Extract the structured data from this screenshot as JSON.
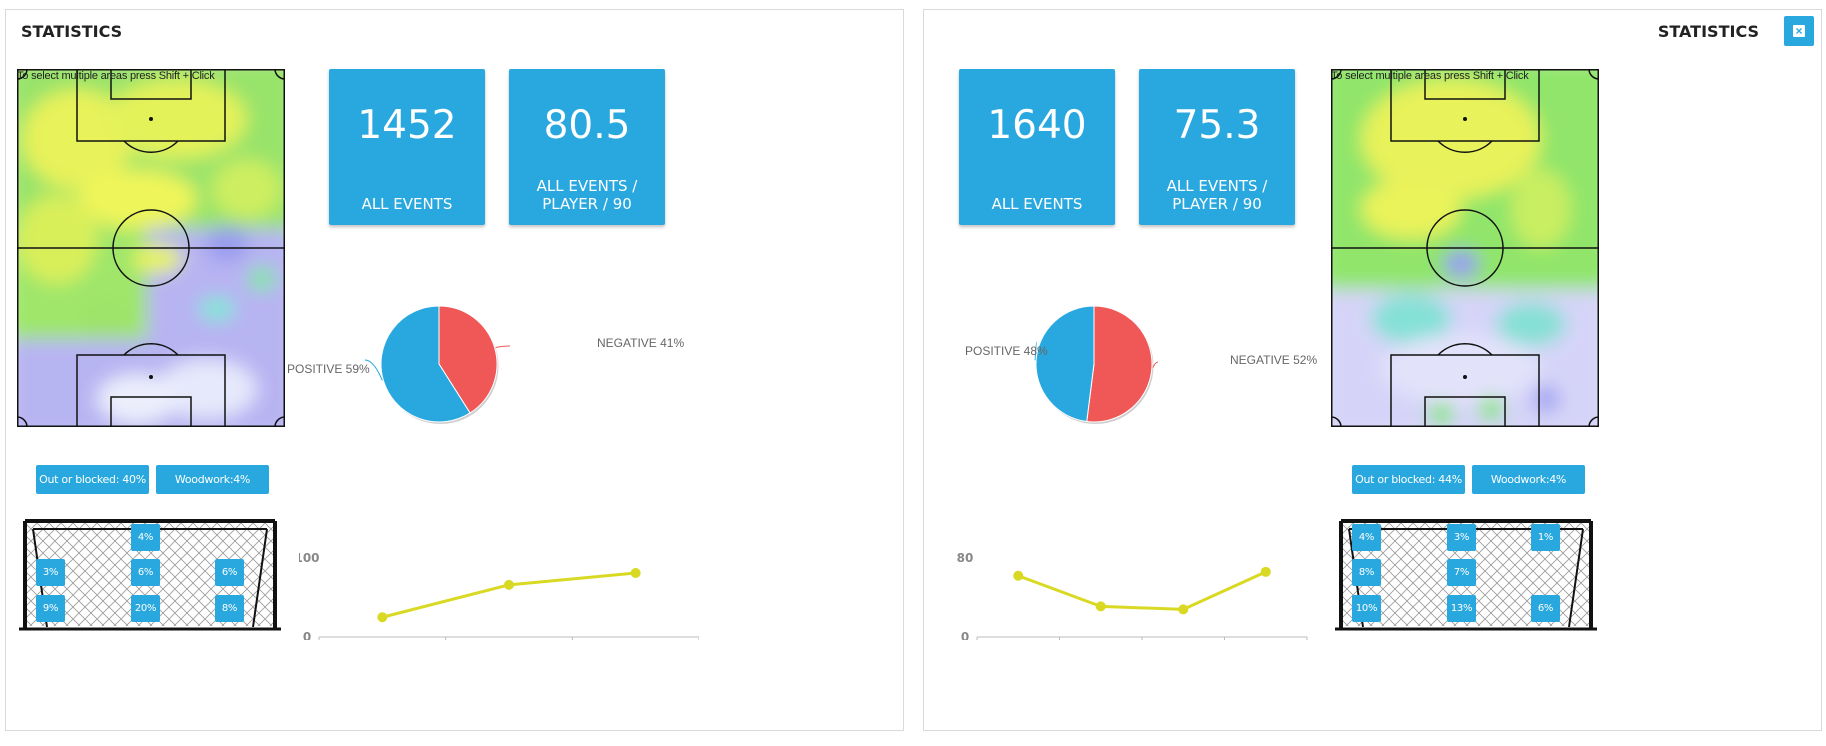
{
  "left": {
    "title": "STATISTICS",
    "pitch_hint": "To select multiple areas press Shift + Click",
    "all_events": {
      "value": "1452",
      "label": "ALL EVENTS"
    },
    "per90": {
      "value": "80.5",
      "label": "ALL EVENTS / PLAYER / 90"
    },
    "pie": {
      "positive_label": "POSITIVE 59%",
      "negative_label": "NEGATIVE 41%",
      "positive": 59,
      "negative": 41
    },
    "out_blocked": "Out or blocked: 40%",
    "woodwork": "Woodwork:4%",
    "goal_zones": [
      {
        "text": "4%",
        "row": 0,
        "col": 1
      },
      {
        "text": "3%",
        "row": 1,
        "col": 0
      },
      {
        "text": "6%",
        "row": 1,
        "col": 1
      },
      {
        "text": "6%",
        "row": 1,
        "col": 2
      },
      {
        "text": "9%",
        "row": 2,
        "col": 0
      },
      {
        "text": "20%",
        "row": 2,
        "col": 1
      },
      {
        "text": "8%",
        "row": 2,
        "col": 2
      }
    ]
  },
  "right": {
    "title": "STATISTICS",
    "close_icon": "close-icon",
    "close_glyph": "×",
    "pitch_hint": "To select multiple areas press Shift + Click",
    "all_events": {
      "value": "1640",
      "label": "ALL EVENTS"
    },
    "per90": {
      "value": "75.3",
      "label": "ALL EVENTS / PLAYER / 90"
    },
    "pie": {
      "positive_label": "POSITIVE 48%",
      "negative_label": "NEGATIVE 52%",
      "positive": 48,
      "negative": 52
    },
    "out_blocked": "Out or blocked: 44%",
    "woodwork": "Woodwork:4%",
    "goal_zones": [
      {
        "text": "4%",
        "row": 0,
        "col": 0
      },
      {
        "text": "3%",
        "row": 0,
        "col": 1
      },
      {
        "text": "1%",
        "row": 0,
        "col": 2
      },
      {
        "text": "8%",
        "row": 1,
        "col": 0
      },
      {
        "text": "7%",
        "row": 1,
        "col": 1
      },
      {
        "text": "10%",
        "row": 2,
        "col": 0
      },
      {
        "text": "13%",
        "row": 2,
        "col": 1
      },
      {
        "text": "6%",
        "row": 2,
        "col": 2
      }
    ]
  },
  "chart_data": [
    {
      "type": "pie",
      "labels": [
        "POSITIVE",
        "NEGATIVE"
      ],
      "values": [
        59,
        41
      ],
      "colors": [
        "#29a8e0",
        "#f05757"
      ]
    },
    {
      "type": "line",
      "y_tick_labels": [
        "0",
        "100"
      ],
      "ylim": [
        0,
        100
      ],
      "values": [
        25,
        66,
        81
      ],
      "color": "#d9d924"
    },
    {
      "type": "pie",
      "labels": [
        "POSITIVE",
        "NEGATIVE"
      ],
      "values": [
        48,
        52
      ],
      "colors": [
        "#29a8e0",
        "#f05757"
      ]
    },
    {
      "type": "line",
      "y_tick_labels": [
        "0",
        "80"
      ],
      "ylim": [
        0,
        80
      ],
      "values": [
        62,
        31,
        28,
        66
      ],
      "color": "#d9d924"
    }
  ],
  "colors": {
    "accent": "#29a8e0",
    "negative": "#f05757",
    "line": "#d9d924"
  }
}
